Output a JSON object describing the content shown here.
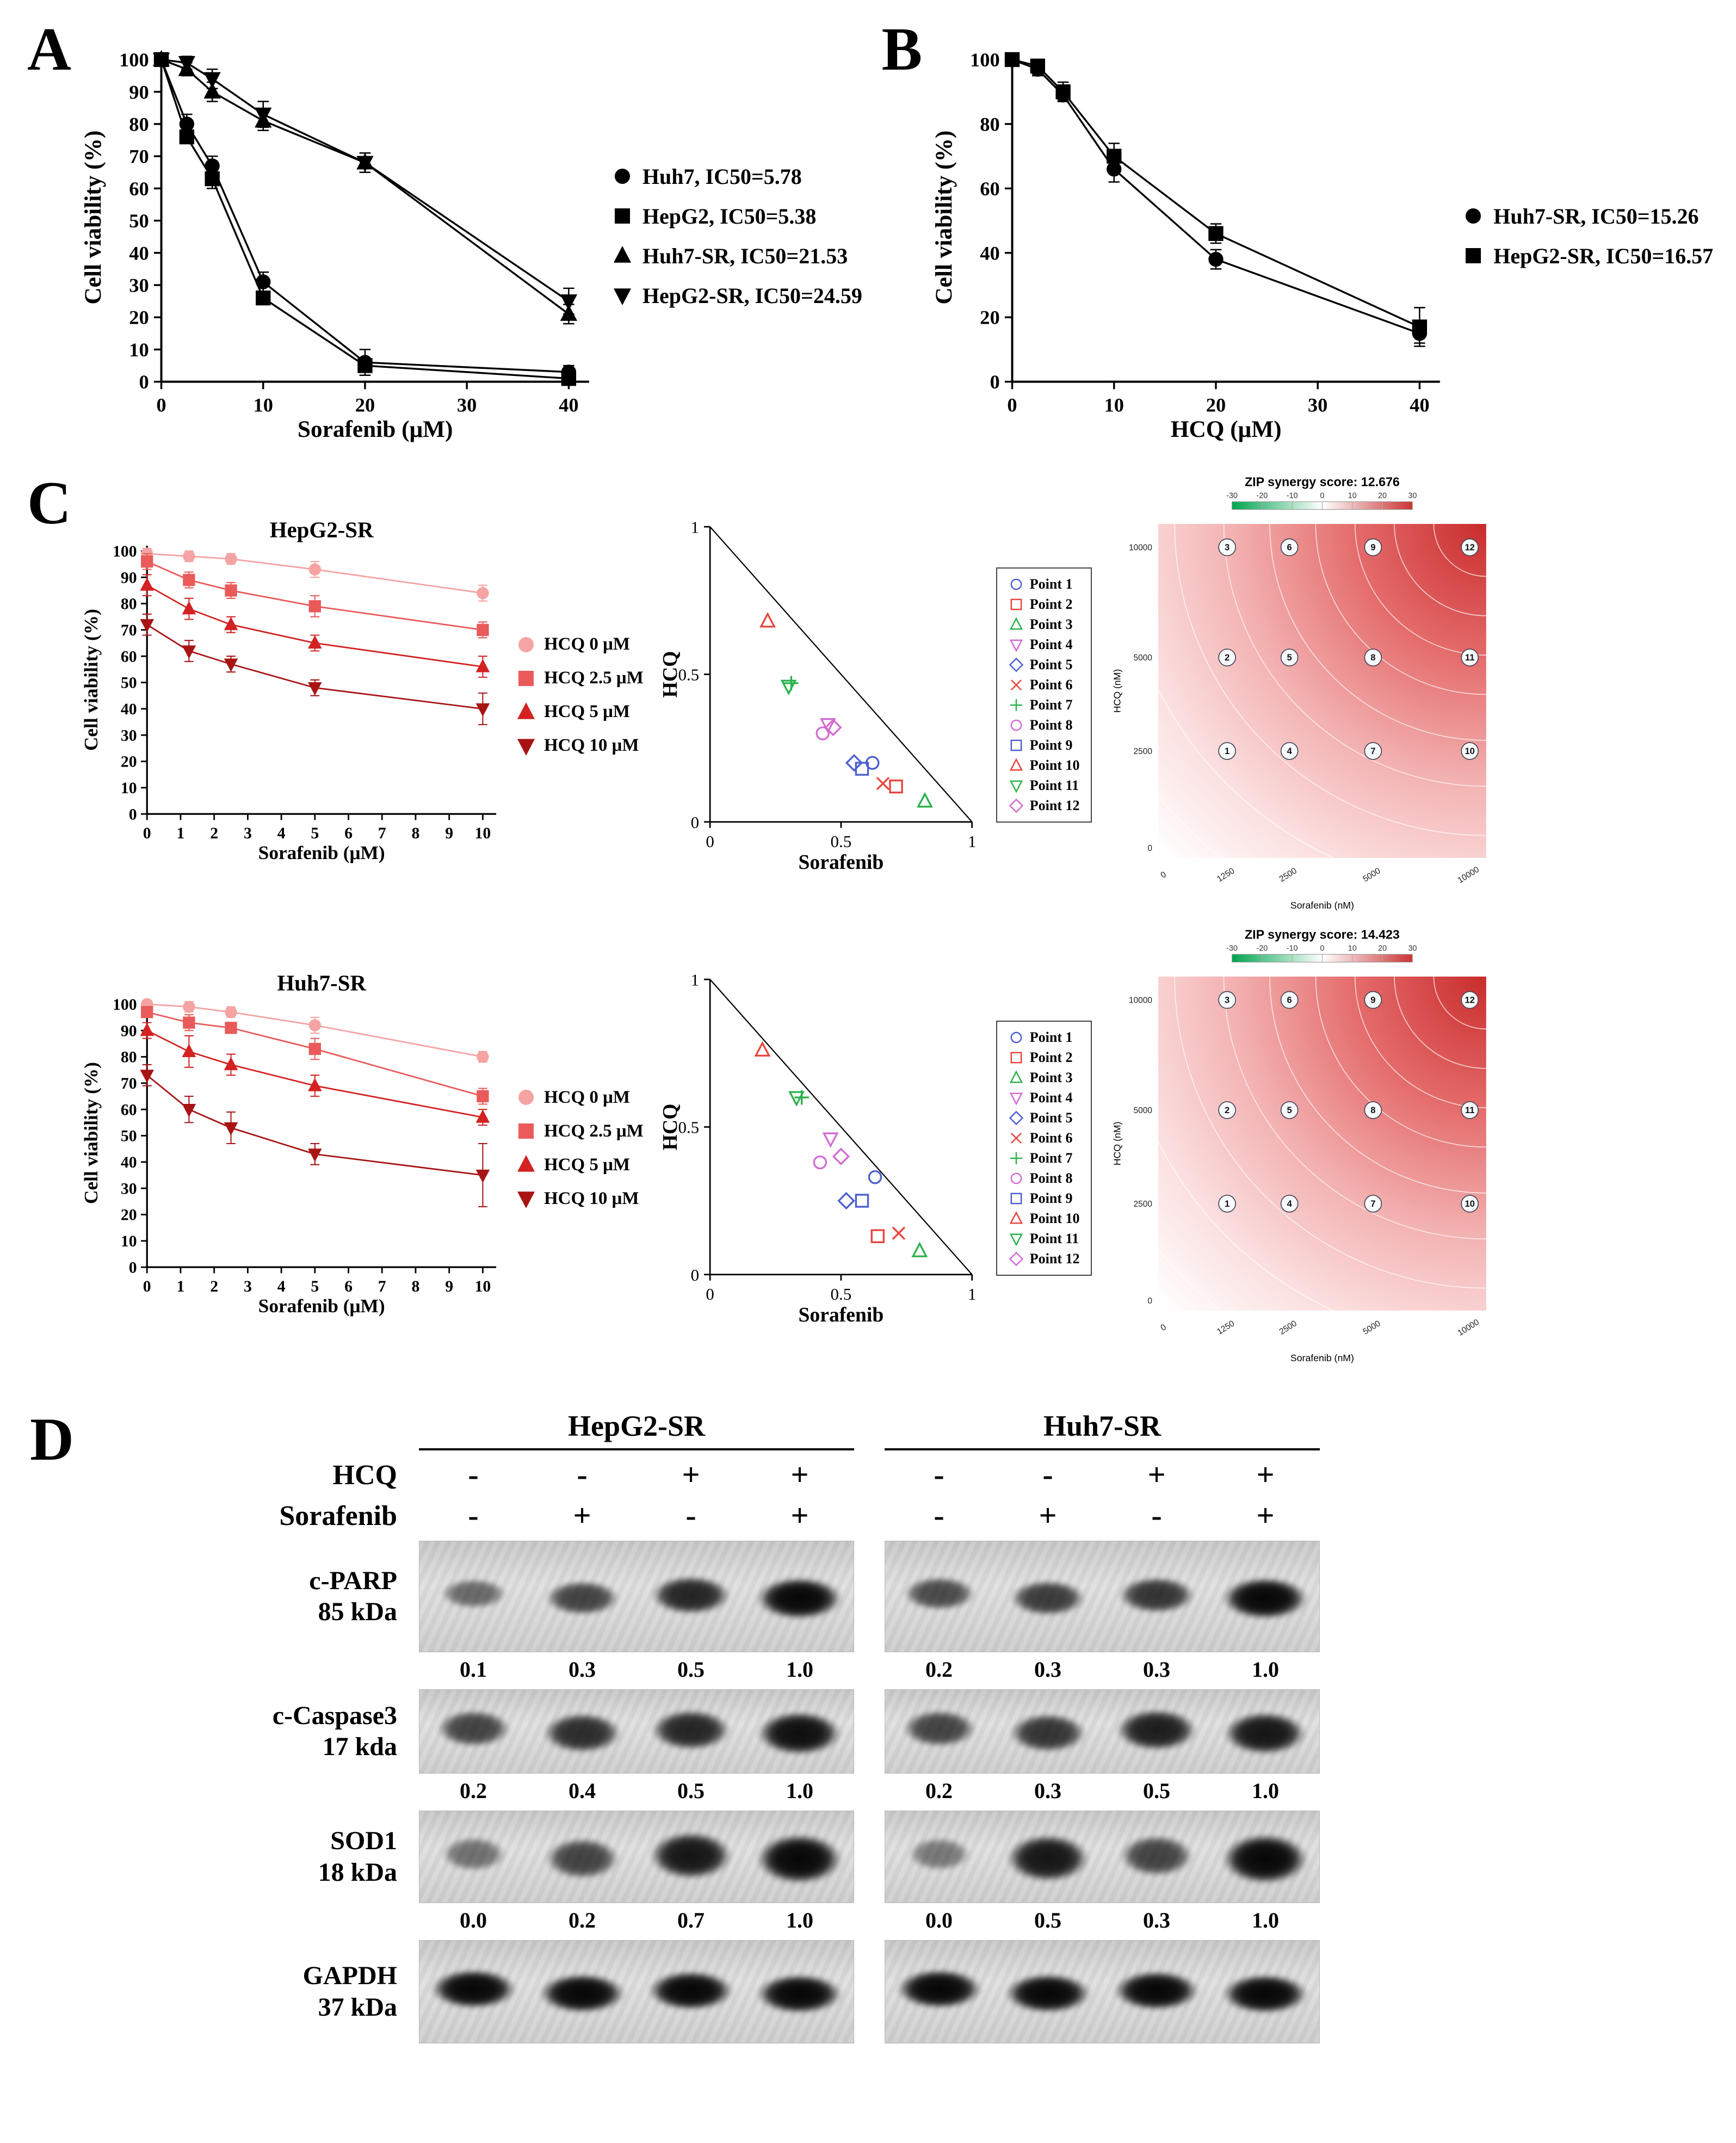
{
  "panels": {
    "a": {
      "label": "A"
    },
    "b": {
      "label": "B"
    },
    "c": {
      "label": "C"
    },
    "d": {
      "label": "D",
      "groups": [
        {
          "name": "HepG2-SR"
        },
        {
          "name": "Huh7-SR"
        }
      ],
      "condition_rows": [
        {
          "label": "HCQ",
          "left": [
            "-",
            "-",
            "+",
            "+"
          ],
          "right": [
            "-",
            "-",
            "+",
            "+"
          ]
        },
        {
          "label": "Sorafenib",
          "left": [
            "-",
            "+",
            "-",
            "+"
          ],
          "right": [
            "-",
            "+",
            "-",
            "+"
          ]
        }
      ],
      "blots": [
        {
          "name": "c-PARP",
          "size": "85 kDa",
          "left_quant": [
            "0.1",
            "0.3",
            "0.5",
            "1.0"
          ],
          "right_quant": [
            "0.2",
            "0.3",
            "0.3",
            "1.0"
          ],
          "left_bands": [
            0.35,
            0.6,
            0.8,
            1.0
          ],
          "right_bands": [
            0.55,
            0.65,
            0.7,
            1.0
          ]
        },
        {
          "name": "c-Caspase3",
          "size": "17 kda",
          "left_quant": [
            "0.2",
            "0.4",
            "0.5",
            "1.0"
          ],
          "right_quant": [
            "0.2",
            "0.3",
            "0.5",
            "1.0"
          ],
          "left_bands": [
            0.6,
            0.75,
            0.8,
            0.95
          ],
          "right_bands": [
            0.6,
            0.7,
            0.85,
            0.9
          ]
        },
        {
          "name": "SOD1",
          "size": "18 kDa",
          "left_quant": [
            "0.0",
            "0.2",
            "0.7",
            "1.0"
          ],
          "right_quant": [
            "0.0",
            "0.5",
            "0.3",
            "1.0"
          ],
          "left_bands": [
            0.3,
            0.6,
            0.9,
            1.0
          ],
          "right_bands": [
            0.25,
            0.9,
            0.6,
            1.0
          ]
        },
        {
          "name": "GAPDH",
          "size": "37 kDa",
          "left_quant": [],
          "right_quant": [],
          "left_bands": [
            1,
            1,
            1,
            1
          ],
          "right_bands": [
            1,
            1,
            1,
            1
          ]
        }
      ]
    }
  },
  "chart_data": [
    {
      "id": "panel-a-dose-response",
      "type": "line",
      "title": "",
      "xlabel": "Sorafenib (μM)",
      "ylabel": "Cell viability (%)",
      "xlim": [
        0,
        42
      ],
      "ylim": [
        0,
        102
      ],
      "xticks": [
        0,
        10,
        20,
        30,
        40
      ],
      "yticks": [
        0,
        10,
        20,
        30,
        40,
        50,
        60,
        70,
        80,
        90,
        100
      ],
      "x": [
        0,
        2.5,
        5,
        10,
        20,
        40
      ],
      "series": [
        {
          "name": "Huh7, IC50=5.78",
          "marker": "circle",
          "color": "#000000",
          "values": [
            100,
            80,
            67,
            31,
            6,
            3
          ],
          "errors": [
            1,
            3,
            3,
            3,
            4,
            2
          ]
        },
        {
          "name": "HepG2, IC50=5.38",
          "marker": "square",
          "color": "#000000",
          "values": [
            100,
            76,
            63,
            26,
            5,
            1
          ],
          "errors": [
            1,
            2,
            3,
            2,
            2,
            1
          ]
        },
        {
          "name": "Huh7-SR, IC50=21.53",
          "marker": "triangle-up",
          "color": "#000000",
          "values": [
            100,
            97,
            90,
            81,
            68,
            21
          ],
          "errors": [
            1,
            2,
            3,
            3,
            3,
            3
          ]
        },
        {
          "name": "HepG2-SR, IC50=24.59",
          "marker": "triangle-down",
          "color": "#000000",
          "values": [
            100,
            99,
            94,
            83,
            68,
            25
          ],
          "errors": [
            1,
            2,
            3,
            4,
            3,
            4
          ]
        }
      ]
    },
    {
      "id": "panel-b-dose-response",
      "type": "line",
      "title": "",
      "xlabel": "HCQ (μM)",
      "ylabel": "Cell viability (%)",
      "xlim": [
        0,
        42
      ],
      "ylim": [
        0,
        102
      ],
      "xticks": [
        0,
        10,
        20,
        30,
        40
      ],
      "yticks": [
        0,
        20,
        40,
        60,
        80,
        100
      ],
      "x": [
        0,
        2.5,
        5,
        10,
        20,
        40
      ],
      "series": [
        {
          "name": "Huh7-SR, IC50=15.26",
          "marker": "circle",
          "color": "#000000",
          "values": [
            100,
            97,
            89,
            66,
            38,
            15
          ],
          "errors": [
            1,
            2,
            2,
            4,
            3,
            3
          ]
        },
        {
          "name": "HepG2-SR, IC50=16.57",
          "marker": "square",
          "color": "#000000",
          "values": [
            100,
            98,
            90,
            70,
            46,
            17
          ],
          "errors": [
            1,
            2,
            3,
            4,
            3,
            6
          ]
        }
      ]
    },
    {
      "id": "hepg2-sr-combination",
      "type": "line",
      "title": "HepG2-SR",
      "xlabel": "Sorafenib (μM)",
      "ylabel": "Cell viability (%)",
      "xlim": [
        0,
        10.4
      ],
      "ylim": [
        0,
        102
      ],
      "xticks": [
        0,
        1,
        2,
        3,
        4,
        5,
        6,
        7,
        8,
        9,
        10
      ],
      "yticks": [
        0,
        10,
        20,
        30,
        40,
        50,
        60,
        70,
        80,
        90,
        100
      ],
      "x": [
        0,
        1.25,
        2.5,
        5,
        10
      ],
      "series": [
        {
          "name": "HCQ 0 μM",
          "marker": "circle",
          "color": "#f5a3a3",
          "values": [
            99,
            98,
            97,
            93,
            84
          ],
          "errors": [
            2,
            2,
            2,
            3,
            3
          ]
        },
        {
          "name": "HCQ 2.5 μM",
          "marker": "square",
          "color": "#ea5a5a",
          "values": [
            96,
            89,
            85,
            79,
            70
          ],
          "errors": [
            3,
            3,
            3,
            4,
            3
          ]
        },
        {
          "name": "HCQ 5 μM",
          "marker": "triangle-up",
          "color": "#d42222",
          "values": [
            87,
            78,
            72,
            65,
            56
          ],
          "errors": [
            4,
            4,
            3,
            3,
            4
          ]
        },
        {
          "name": "HCQ 10 μM",
          "marker": "triangle-down",
          "color": "#a81414",
          "values": [
            72,
            62,
            57,
            48,
            40
          ],
          "errors": [
            4,
            4,
            3,
            3,
            6
          ]
        }
      ]
    },
    {
      "id": "hepg2-sr-isobologram",
      "type": "scatter",
      "xlabel": "Sorafenib",
      "ylabel": "HCQ",
      "xlim": [
        0,
        1
      ],
      "ylim": [
        0,
        1
      ],
      "ticks": [
        0,
        0.5,
        1
      ],
      "diagonal": true,
      "points": [
        {
          "name": "Point 1",
          "marker": "circle",
          "color": "#4a5fd0",
          "x": 0.62,
          "y": 0.2
        },
        {
          "name": "Point 2",
          "marker": "square",
          "color": "#e8443c",
          "x": 0.71,
          "y": 0.12
        },
        {
          "name": "Point 3",
          "marker": "triangle-up",
          "color": "#2bb24c",
          "x": 0.82,
          "y": 0.07
        },
        {
          "name": "Point 4",
          "marker": "triangle-down",
          "color": "#d36bd3",
          "x": 0.45,
          "y": 0.33
        },
        {
          "name": "Point 5",
          "marker": "diamond",
          "color": "#4a5fd0",
          "x": 0.55,
          "y": 0.2
        },
        {
          "name": "Point 6",
          "marker": "x",
          "color": "#e8443c",
          "x": 0.66,
          "y": 0.13
        },
        {
          "name": "Point 7",
          "marker": "plus",
          "color": "#2bb24c",
          "x": 0.31,
          "y": 0.47
        },
        {
          "name": "Point 8",
          "marker": "circle",
          "color": "#d36bd3",
          "x": 0.43,
          "y": 0.3
        },
        {
          "name": "Point 9",
          "marker": "square",
          "color": "#4a5fd0",
          "x": 0.58,
          "y": 0.18
        },
        {
          "name": "Point 10",
          "marker": "triangle-up",
          "color": "#e8443c",
          "x": 0.22,
          "y": 0.68
        },
        {
          "name": "Point 11",
          "marker": "triangle-down",
          "color": "#2bb24c",
          "x": 0.3,
          "y": 0.46
        },
        {
          "name": "Point 12",
          "marker": "diamond",
          "color": "#d36bd3",
          "x": 0.47,
          "y": 0.32
        }
      ]
    },
    {
      "id": "hepg2-sr-zip",
      "type": "heatmap",
      "title": "ZIP synergy score: 12.676",
      "xlabel": "Sorafenib (nM)",
      "ylabel": "HCQ (nM)",
      "xticks": [
        0,
        1250,
        2500,
        5000,
        10000
      ],
      "yticks": [
        0,
        2500,
        5000,
        10000
      ],
      "colorbar_ticks": [
        -30,
        -20,
        -10,
        0,
        10,
        20,
        30
      ],
      "colorbar_colors": [
        "#00a550",
        "#ffffff",
        "#cc3333"
      ],
      "points": [
        {
          "n": 1,
          "x": 1250,
          "y": 2500
        },
        {
          "n": 2,
          "x": 1250,
          "y": 5000
        },
        {
          "n": 3,
          "x": 1250,
          "y": 10000
        },
        {
          "n": 4,
          "x": 2500,
          "y": 2500
        },
        {
          "n": 5,
          "x": 2500,
          "y": 5000
        },
        {
          "n": 6,
          "x": 2500,
          "y": 10000
        },
        {
          "n": 7,
          "x": 5000,
          "y": 2500
        },
        {
          "n": 8,
          "x": 5000,
          "y": 5000
        },
        {
          "n": 9,
          "x": 5000,
          "y": 10000
        },
        {
          "n": 10,
          "x": 10000,
          "y": 2500
        },
        {
          "n": 11,
          "x": 10000,
          "y": 5000
        },
        {
          "n": 12,
          "x": 10000,
          "y": 10000
        }
      ]
    },
    {
      "id": "huh7-sr-combination",
      "type": "line",
      "title": "Huh7-SR",
      "xlabel": "Sorafenib (μM)",
      "ylabel": "Cell viability (%)",
      "xlim": [
        0,
        10.4
      ],
      "ylim": [
        0,
        102
      ],
      "xticks": [
        0,
        1,
        2,
        3,
        4,
        5,
        6,
        7,
        8,
        9,
        10
      ],
      "yticks": [
        0,
        10,
        20,
        30,
        40,
        50,
        60,
        70,
        80,
        90,
        100
      ],
      "x": [
        0,
        1.25,
        2.5,
        5,
        10
      ],
      "series": [
        {
          "name": "HCQ 0 μM",
          "marker": "circle",
          "color": "#f5a3a3",
          "values": [
            100,
            99,
            97,
            92,
            80
          ],
          "errors": [
            1,
            2,
            2,
            3,
            2
          ]
        },
        {
          "name": "HCQ 2.5 μM",
          "marker": "square",
          "color": "#ea5a5a",
          "values": [
            97,
            93,
            91,
            83,
            65
          ],
          "errors": [
            2,
            3,
            2,
            4,
            3
          ]
        },
        {
          "name": "HCQ 5 μM",
          "marker": "triangle-up",
          "color": "#d42222",
          "values": [
            90,
            82,
            77,
            69,
            57
          ],
          "errors": [
            3,
            6,
            4,
            4,
            3
          ]
        },
        {
          "name": "HCQ 10 μM",
          "marker": "triangle-down",
          "color": "#a81414",
          "values": [
            73,
            60,
            53,
            43,
            35
          ],
          "errors": [
            4,
            5,
            6,
            4,
            12
          ]
        }
      ]
    },
    {
      "id": "huh7-sr-isobologram",
      "type": "scatter",
      "xlabel": "Sorafenib",
      "ylabel": "HCQ",
      "xlim": [
        0,
        1
      ],
      "ylim": [
        0,
        1
      ],
      "ticks": [
        0,
        0.5,
        1
      ],
      "diagonal": true,
      "points": [
        {
          "name": "Point 1",
          "marker": "circle",
          "color": "#4a5fd0",
          "x": 0.63,
          "y": 0.33
        },
        {
          "name": "Point 2",
          "marker": "square",
          "color": "#e8443c",
          "x": 0.64,
          "y": 0.13
        },
        {
          "name": "Point 3",
          "marker": "triangle-up",
          "color": "#2bb24c",
          "x": 0.8,
          "y": 0.08
        },
        {
          "name": "Point 4",
          "marker": "triangle-down",
          "color": "#d36bd3",
          "x": 0.46,
          "y": 0.46
        },
        {
          "name": "Point 5",
          "marker": "diamond",
          "color": "#4a5fd0",
          "x": 0.52,
          "y": 0.25
        },
        {
          "name": "Point 6",
          "marker": "x",
          "color": "#e8443c",
          "x": 0.72,
          "y": 0.14
        },
        {
          "name": "Point 7",
          "marker": "plus",
          "color": "#2bb24c",
          "x": 0.35,
          "y": 0.6
        },
        {
          "name": "Point 8",
          "marker": "circle",
          "color": "#d36bd3",
          "x": 0.42,
          "y": 0.38
        },
        {
          "name": "Point 9",
          "marker": "square",
          "color": "#4a5fd0",
          "x": 0.58,
          "y": 0.25
        },
        {
          "name": "Point 10",
          "marker": "triangle-up",
          "color": "#e8443c",
          "x": 0.2,
          "y": 0.76
        },
        {
          "name": "Point 11",
          "marker": "triangle-down",
          "color": "#2bb24c",
          "x": 0.33,
          "y": 0.6
        },
        {
          "name": "Point 12",
          "marker": "diamond",
          "color": "#d36bd3",
          "x": 0.5,
          "y": 0.4
        }
      ]
    },
    {
      "id": "huh7-sr-zip",
      "type": "heatmap",
      "title": "ZIP synergy score: 14.423",
      "xlabel": "Sorafenib (nM)",
      "ylabel": "HCQ (nM)",
      "xticks": [
        0,
        1250,
        2500,
        5000,
        10000
      ],
      "yticks": [
        0,
        2500,
        5000,
        10000
      ],
      "colorbar_ticks": [
        -30,
        -20,
        -10,
        0,
        10,
        20,
        30
      ],
      "colorbar_colors": [
        "#00a550",
        "#ffffff",
        "#cc3333"
      ],
      "points": [
        {
          "n": 1,
          "x": 1250,
          "y": 2500
        },
        {
          "n": 2,
          "x": 1250,
          "y": 5000
        },
        {
          "n": 3,
          "x": 1250,
          "y": 10000
        },
        {
          "n": 4,
          "x": 2500,
          "y": 2500
        },
        {
          "n": 5,
          "x": 2500,
          "y": 5000
        },
        {
          "n": 6,
          "x": 2500,
          "y": 10000
        },
        {
          "n": 7,
          "x": 5000,
          "y": 2500
        },
        {
          "n": 8,
          "x": 5000,
          "y": 5000
        },
        {
          "n": 9,
          "x": 5000,
          "y": 10000
        },
        {
          "n": 10,
          "x": 10000,
          "y": 2500
        },
        {
          "n": 11,
          "x": 10000,
          "y": 5000
        },
        {
          "n": 12,
          "x": 10000,
          "y": 10000
        }
      ]
    }
  ]
}
